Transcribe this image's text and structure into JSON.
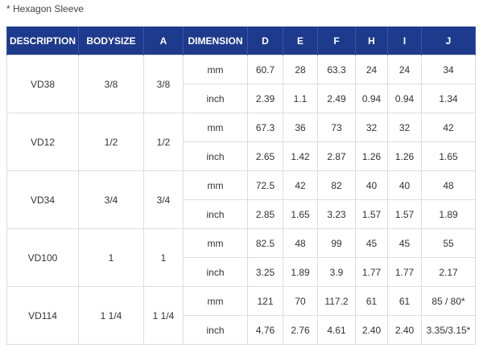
{
  "note": "* Hexagon Sleeve",
  "headers": [
    "DESCRIPTION",
    "BODYSIZE",
    "A",
    "DIMENSION",
    "D",
    "E",
    "F",
    "H",
    "I",
    "J"
  ],
  "rows": [
    {
      "description": "VD38",
      "bodysize": "3/8",
      "a": "3/8",
      "mm": {
        "unit": "mm",
        "values": [
          "60.7",
          "28",
          "63.3",
          "24",
          "24",
          "34"
        ]
      },
      "inch": {
        "unit": "inch",
        "values": [
          "2.39",
          "1.1",
          "2.49",
          "0.94",
          "0.94",
          "1.34"
        ]
      }
    },
    {
      "description": "VD12",
      "bodysize": "1/2",
      "a": "1/2",
      "mm": {
        "unit": "mm",
        "values": [
          "67.3",
          "36",
          "73",
          "32",
          "32",
          "42"
        ]
      },
      "inch": {
        "unit": "inch",
        "values": [
          "2.65",
          "1.42",
          "2.87",
          "1.26",
          "1.26",
          "1.65"
        ]
      }
    },
    {
      "description": "VD34",
      "bodysize": "3/4",
      "a": "3/4",
      "mm": {
        "unit": "mm",
        "values": [
          "72.5",
          "42",
          "82",
          "40",
          "40",
          "48"
        ]
      },
      "inch": {
        "unit": "inch",
        "values": [
          "2.85",
          "1.65",
          "3.23",
          "1.57",
          "1.57",
          "1.89"
        ]
      }
    },
    {
      "description": "VD100",
      "bodysize": "1",
      "a": "1",
      "mm": {
        "unit": "mm",
        "values": [
          "82.5",
          "48",
          "99",
          "45",
          "45",
          "55"
        ]
      },
      "inch": {
        "unit": "inch",
        "values": [
          "3.25",
          "1.89",
          "3.9",
          "1.77",
          "1.77",
          "2.17"
        ]
      }
    },
    {
      "description": "VD114",
      "bodysize": "1 1/4",
      "a": "1 1/4",
      "mm": {
        "unit": "mm",
        "values": [
          "121",
          "70",
          "117.2",
          "61",
          "61",
          "85 / 80*"
        ]
      },
      "inch": {
        "unit": "inch",
        "values": [
          "4.76",
          "2.76",
          "4.61",
          "2.40",
          "2.40",
          "3.35/3.15*"
        ]
      }
    }
  ],
  "colors": {
    "header_bg": "#1e3a8c",
    "header_text": "#ffffff",
    "border": "#dddddd"
  }
}
